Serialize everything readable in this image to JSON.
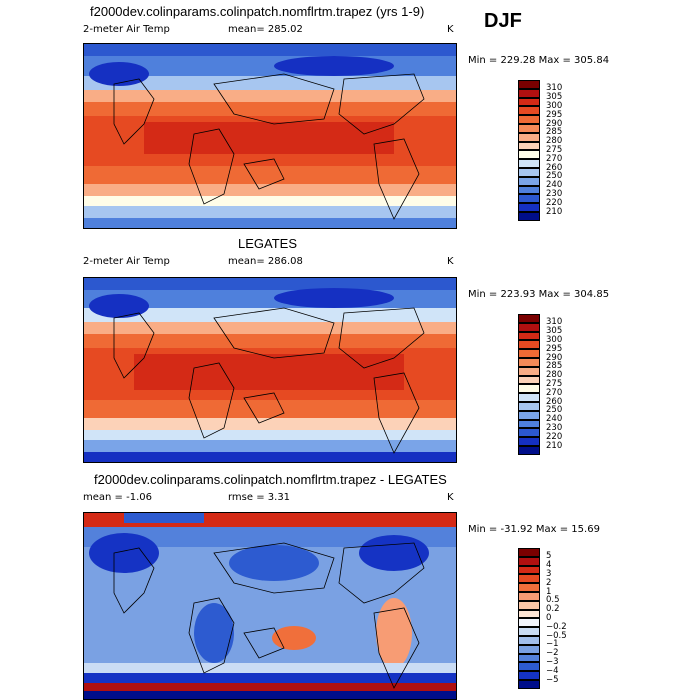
{
  "season": "DJF",
  "panels": [
    {
      "title": "f2000dev.colinparams.colinpatch.nomflrtm.trapez (yrs 1-9)",
      "left_label": "2-meter Air Temp",
      "center_label": "mean= 285.02",
      "unit": "K",
      "stats": "Min = 229.28 Max = 305.84",
      "colorbar_labels": [
        "310",
        "305",
        "300",
        "295",
        "290",
        "285",
        "280",
        "275",
        "270",
        "260",
        "250",
        "240",
        "230",
        "220",
        "210"
      ]
    },
    {
      "title": "LEGATES",
      "left_label": "2-meter Air Temp",
      "center_label": "mean= 286.08",
      "unit": "K",
      "stats": "Min = 223.93 Max = 304.85",
      "colorbar_labels": [
        "310",
        "305",
        "300",
        "295",
        "290",
        "285",
        "280",
        "275",
        "270",
        "260",
        "250",
        "240",
        "230",
        "220",
        "210"
      ]
    },
    {
      "title": "f2000dev.colinparams.colinpatch.nomflrtm.trapez - LEGATES",
      "left_label": "mean =   -1.06",
      "center_label": "rmse =    3.31",
      "unit": "K",
      "stats": "Min = -31.92 Max =  15.69",
      "colorbar_labels": [
        "5",
        "4",
        "3",
        "2",
        "1",
        "0.5",
        "0.2",
        "0",
        "−0.2",
        "−0.5",
        "−1",
        "−2",
        "−3",
        "−4",
        "−5"
      ]
    }
  ],
  "temp_colors": [
    "#7a0000",
    "#b01010",
    "#d42a16",
    "#e64a22",
    "#ef6a35",
    "#f58a58",
    "#f9ad86",
    "#fcd2b8",
    "#fffde8",
    "#d0e4f8",
    "#a7c6f0",
    "#7aa4e8",
    "#4f80dc",
    "#2c58cf",
    "#1530c2",
    "#000e8a"
  ],
  "diff_colors": [
    "#7a0000",
    "#b01010",
    "#d42a16",
    "#e64a22",
    "#f06f3b",
    "#f79c74",
    "#fbc6a6",
    "#fde4d4",
    "#f2f5fc",
    "#cadcf4",
    "#a2bfec",
    "#7aa1e3",
    "#5381db",
    "#2d5bd0",
    "#1533c4",
    "#000e8a"
  ]
}
